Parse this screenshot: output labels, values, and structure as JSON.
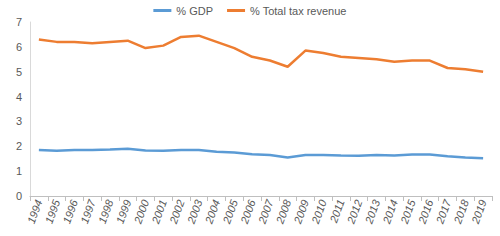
{
  "chart_data": {
    "type": "line",
    "categories": [
      "1994",
      "1995",
      "1996",
      "1997",
      "1998",
      "1999",
      "2000",
      "2001",
      "2002",
      "2003",
      "2004",
      "2005",
      "2006",
      "2007",
      "2008",
      "2009",
      "2010",
      "2011",
      "2012",
      "2013",
      "2014",
      "2015",
      "2016",
      "2017",
      "2018",
      "2019"
    ],
    "series": [
      {
        "name": "% GDP",
        "color": "#5b9bd5",
        "values": [
          1.85,
          1.82,
          1.85,
          1.85,
          1.87,
          1.9,
          1.83,
          1.82,
          1.85,
          1.85,
          1.78,
          1.75,
          1.68,
          1.65,
          1.55,
          1.65,
          1.65,
          1.63,
          1.62,
          1.65,
          1.63,
          1.67,
          1.67,
          1.6,
          1.55,
          1.52
        ]
      },
      {
        "name": "% Total tax revenue",
        "color": "#ed7d31",
        "values": [
          6.3,
          6.2,
          6.2,
          6.15,
          6.2,
          6.25,
          5.95,
          6.05,
          6.4,
          6.45,
          6.2,
          5.95,
          5.6,
          5.45,
          5.2,
          5.85,
          5.75,
          5.6,
          5.55,
          5.5,
          5.4,
          5.45,
          5.45,
          5.15,
          5.1,
          5.0
        ]
      }
    ],
    "ylim": [
      0,
      7
    ],
    "yticks": [
      0,
      1,
      2,
      3,
      4,
      5,
      6,
      7
    ],
    "grid": false,
    "legend": "top"
  }
}
